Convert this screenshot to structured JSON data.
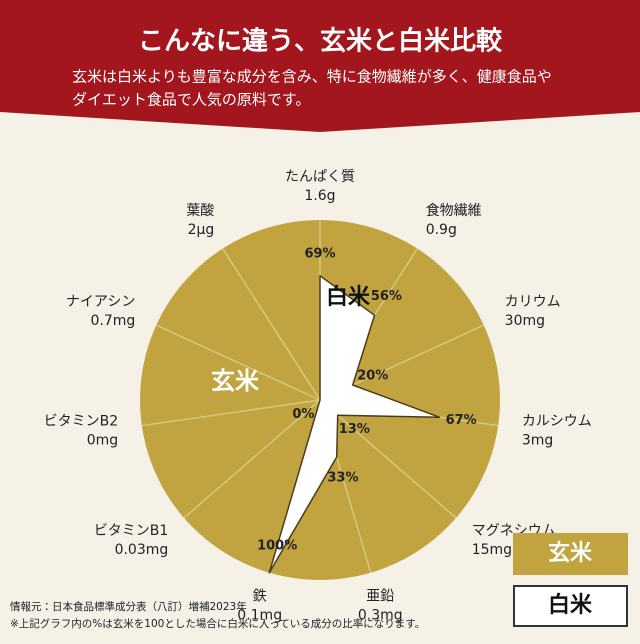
{
  "chart_data": {
    "type": "radar",
    "title": "こんなに違う、玄米と白米比較",
    "subtitle": [
      "玄米は白米よりも豊富な成分を含み、特に食物繊維が多く、健康食品や",
      "ダイエット食品で人気の原料です。"
    ],
    "categories": [
      "たんぱく質",
      "食物繊維",
      "カリウム",
      "カルシウム",
      "マグネシウム",
      "亜鉛",
      "鉄",
      "ビタミンB1",
      "ビタミンB2",
      "ナイアシン",
      "葉酸"
    ],
    "amounts": [
      "1.6g",
      "0.9g",
      "30mg",
      "3mg",
      "15mg",
      "0.3mg",
      "0.1mg",
      "0.03mg",
      "0mg",
      "0.7mg",
      "2μg"
    ],
    "base": {
      "name": "玄米",
      "color": "#c1a33f"
    },
    "series": [
      {
        "name": "白米",
        "color": "#ffffff",
        "values": [
          69,
          56,
          20,
          67,
          13,
          33,
          100,
          0,
          0,
          0,
          0
        ],
        "value_labels": [
          "69%",
          "56%",
          "20%",
          "67%",
          "13%",
          "33%",
          "100%",
          "0%",
          null,
          null,
          null
        ]
      }
    ],
    "rlim": [
      0,
      100
    ],
    "footnotes": [
      "情報元：日本食品標準成分表（八訂）増補2023年",
      "※上記グラフ内の%は玄米を100とした場合に白米に入っている成分の比率になります。"
    ]
  }
}
